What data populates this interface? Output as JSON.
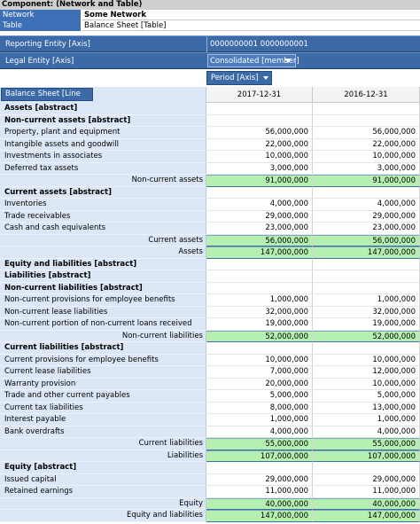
{
  "component": {
    "title": "Component: (Network and Table)"
  },
  "info": [
    {
      "key": "Network",
      "value": "Some Network",
      "bold": true
    },
    {
      "key": "Table",
      "value": "Balance Sheet [Table]",
      "bold": false
    }
  ],
  "axes": {
    "reporting_entity": {
      "label": "Reporting Entity [Axis]",
      "value": "0000000001 0000000001"
    },
    "legal_entity": {
      "label": "Legal Entity [Axis]",
      "value": "Consolidated [member]"
    },
    "period": {
      "label": "Period [Axis]"
    },
    "line_items": {
      "label": "Balance Sheet [Line items]"
    }
  },
  "columns": [
    "2017-12-31",
    "2016-12-31"
  ],
  "rows": [
    {
      "label": "Assets [abstract]",
      "type": "abstract"
    },
    {
      "label": "Non-current assets [abstract]",
      "type": "abstract"
    },
    {
      "label": "Property, plant and equipment",
      "type": "item",
      "v1": "56,000,000",
      "v2": "56,000,000"
    },
    {
      "label": "Intangible assets and goodwill",
      "type": "item",
      "v1": "22,000,000",
      "v2": "22,000,000"
    },
    {
      "label": "Investments in associates",
      "type": "item",
      "v1": "10,000,000",
      "v2": "10,000,000"
    },
    {
      "label": "Deferred tax assets",
      "type": "item",
      "v1": "3,000,000",
      "v2": "3,000,000"
    },
    {
      "label": "Non-current assets",
      "type": "total",
      "v1": "91,000,000",
      "v2": "91,000,000"
    },
    {
      "label": "Current assets [abstract]",
      "type": "abstract"
    },
    {
      "label": "Inventories",
      "type": "item",
      "v1": "4,000,000",
      "v2": "4,000,000"
    },
    {
      "label": "Trade receivables",
      "type": "item",
      "v1": "29,000,000",
      "v2": "29,000,000"
    },
    {
      "label": "Cash and cash equivalents",
      "type": "item",
      "v1": "23,000,000",
      "v2": "23,000,000"
    },
    {
      "label": "Current assets",
      "type": "total",
      "v1": "56,000,000",
      "v2": "56,000,000"
    },
    {
      "label": "Assets",
      "type": "total",
      "v1": "147,000,000",
      "v2": "147,000,000"
    },
    {
      "label": "Equity and liabilities [abstract]",
      "type": "abstract"
    },
    {
      "label": "Liabilities [abstract]",
      "type": "abstract"
    },
    {
      "label": "Non-current liabilities [abstract]",
      "type": "abstract"
    },
    {
      "label": "Non-current provisions for employee benefits",
      "type": "item",
      "v1": "1,000,000",
      "v2": "1,000,000"
    },
    {
      "label": "Non-current lease liabilities",
      "type": "item",
      "v1": "32,000,000",
      "v2": "32,000,000"
    },
    {
      "label": "Non-current portion of non-current loans received",
      "type": "item",
      "v1": "19,000,000",
      "v2": "19,000,000"
    },
    {
      "label": "Non-current liabilities",
      "type": "total",
      "v1": "52,000,000",
      "v2": "52,000,000"
    },
    {
      "label": "Current liabilities [abstract]",
      "type": "abstract"
    },
    {
      "label": "Current provisions for employee benefits",
      "type": "item",
      "v1": "10,000,000",
      "v2": "10,000,000"
    },
    {
      "label": "Current lease liabilities",
      "type": "item",
      "v1": "7,000,000",
      "v2": "12,000,000"
    },
    {
      "label": "Warranty provision",
      "type": "item",
      "v1": "20,000,000",
      "v2": "10,000,000"
    },
    {
      "label": "Trade and other current payables",
      "type": "item",
      "v1": "5,000,000",
      "v2": "5,000,000"
    },
    {
      "label": "Current tax liabilities",
      "type": "item",
      "v1": "8,000,000",
      "v2": "13,000,000"
    },
    {
      "label": "Interest payable",
      "type": "item",
      "v1": "1,000,000",
      "v2": "1,000,000"
    },
    {
      "label": "Bank overdrafts",
      "type": "item",
      "v1": "4,000,000",
      "v2": "4,000,000"
    },
    {
      "label": "Current liabilities",
      "type": "total",
      "v1": "55,000,000",
      "v2": "55,000,000"
    },
    {
      "label": "Liabilities",
      "type": "total",
      "v1": "107,000,000",
      "v2": "107,000,000"
    },
    {
      "label": "Equity [abstract]",
      "type": "abstract"
    },
    {
      "label": "Issued capital",
      "type": "item",
      "v1": "29,000,000",
      "v2": "29,000,000"
    },
    {
      "label": "Retained earnings",
      "type": "item",
      "v1": "11,000,000",
      "v2": "11,000,000"
    },
    {
      "label": "Equity",
      "type": "total",
      "v1": "40,000,000",
      "v2": "40,000,000"
    },
    {
      "label": "Equity and liabilities",
      "type": "total",
      "v1": "147,000,000",
      "v2": "147,000,000"
    }
  ]
}
